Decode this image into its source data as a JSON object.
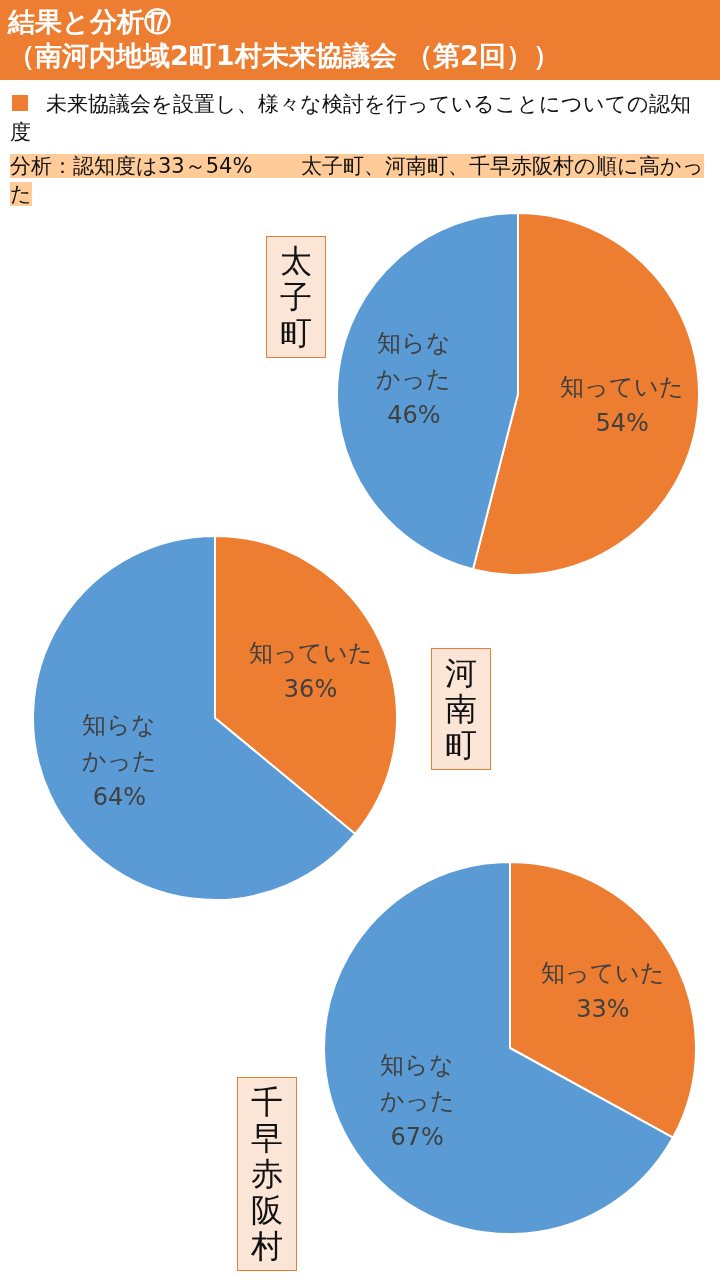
{
  "chart_data": [
    {
      "type": "other",
      "title": "結果と分析⑰",
      "subtitle": "（南河内地域2町1村未来協議会 （第2回））",
      "annotations": [
        "未来協議会を設置し、様々な検討を行っていることについての認知度",
        "分析：認知度は33～54%　　 太子町、河南町、千早赤阪村の順に高かった"
      ]
    },
    {
      "type": "pie",
      "title": "太子町",
      "categories": [
        "知っていた",
        "知らなかった"
      ],
      "values": [
        54,
        46
      ],
      "colors": [
        "#ed7d31",
        "#5b9bd5"
      ],
      "value_labels": [
        "54%",
        "46%"
      ]
    },
    {
      "type": "pie",
      "title": "河南町",
      "categories": [
        "知っていた",
        "知らなかった"
      ],
      "values": [
        36,
        64
      ],
      "colors": [
        "#ed7d31",
        "#5b9bd5"
      ],
      "value_labels": [
        "36%",
        "64%"
      ]
    },
    {
      "type": "pie",
      "title": "千早赤阪村",
      "categories": [
        "知っていた",
        "知らなかった"
      ],
      "values": [
        33,
        67
      ],
      "colors": [
        "#ed7d31",
        "#5b9bd5"
      ],
      "value_labels": [
        "33%",
        "67%"
      ]
    }
  ]
}
